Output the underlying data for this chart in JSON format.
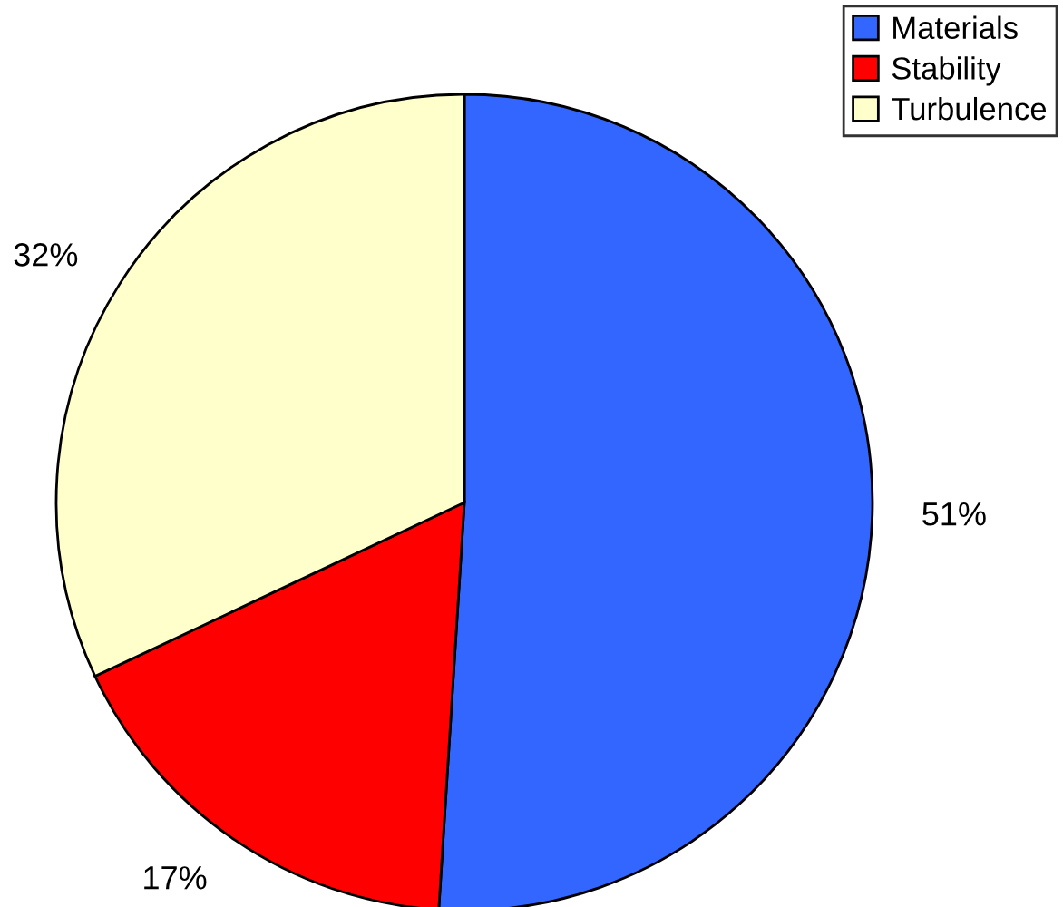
{
  "chart_data": {
    "type": "pie",
    "categories": [
      "Materials",
      "Stability",
      "Turbulence"
    ],
    "values": [
      51,
      17,
      32
    ],
    "colors": [
      "#3366ff",
      "#ff0000",
      "#ffffcc"
    ],
    "value_labels": [
      "51%",
      "17%",
      "32%"
    ],
    "legend": "top right"
  }
}
